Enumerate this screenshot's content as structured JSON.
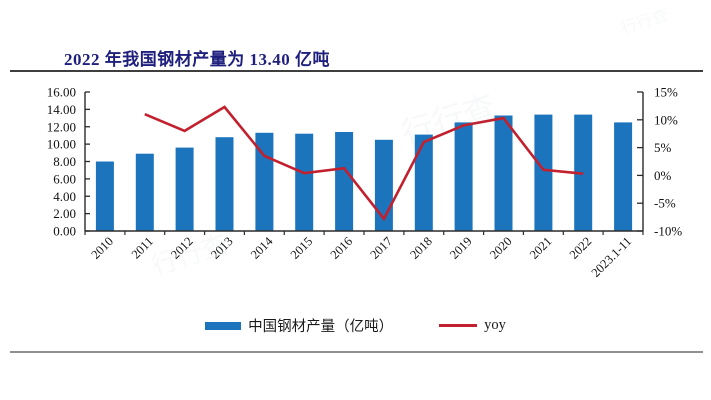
{
  "page": {
    "title": "2022 年我国钢材产量为 13.40 亿吨"
  },
  "colors": {
    "bar": "#1B74BC",
    "line": "#C3202E",
    "title_text": "#1F1F7E",
    "axis_line": "#2b2b2b",
    "tick_text": "#111111",
    "divider_top": "#3f3f3f",
    "divider_bottom": "#8f8f8f"
  },
  "watermark": {
    "text": "行行查"
  },
  "legend": {
    "items": [
      {
        "label": "中国钢材产量（亿吨）",
        "marker": "bar"
      },
      {
        "label": "yoy",
        "marker": "line"
      }
    ]
  },
  "chart_data": {
    "type": "bar+line",
    "title": "2022 年我国钢材产量为 13.40 亿吨",
    "categories": [
      "2010",
      "2011",
      "2012",
      "2013",
      "2014",
      "2015",
      "2016",
      "2017",
      "2018",
      "2019",
      "2020",
      "2021",
      "2022",
      "2023.1-11"
    ],
    "series": [
      {
        "name": "中国钢材产量（亿吨）",
        "type": "bar",
        "axis": "left",
        "color": "#1B74BC",
        "values": [
          8.0,
          8.9,
          9.6,
          10.8,
          11.3,
          11.2,
          11.4,
          10.5,
          11.1,
          12.5,
          13.3,
          13.4,
          13.4,
          12.5
        ]
      },
      {
        "name": "yoy",
        "type": "line",
        "axis": "right",
        "color": "#C3202E",
        "values": [
          null,
          11.0,
          8.0,
          12.3,
          3.5,
          0.4,
          1.3,
          -7.8,
          6.0,
          9.0,
          10.3,
          1.0,
          0.3,
          null
        ]
      }
    ],
    "left_axis": {
      "min": 0,
      "max": 16,
      "ticks": [
        0,
        2,
        4,
        6,
        8,
        10,
        12,
        14,
        16
      ],
      "tick_labels": [
        "0.00",
        "2.00",
        "4.00",
        "6.00",
        "8.00",
        "10.00",
        "12.00",
        "14.00",
        "16.00"
      ]
    },
    "right_axis": {
      "min": -10,
      "max": 15,
      "ticks": [
        -10,
        -5,
        0,
        5,
        10,
        15
      ],
      "tick_labels": [
        "-10%",
        "-5%",
        "0%",
        "5%",
        "10%",
        "15%"
      ]
    },
    "grid": false,
    "legend_position": "bottom",
    "x_label_rotation": 45
  }
}
